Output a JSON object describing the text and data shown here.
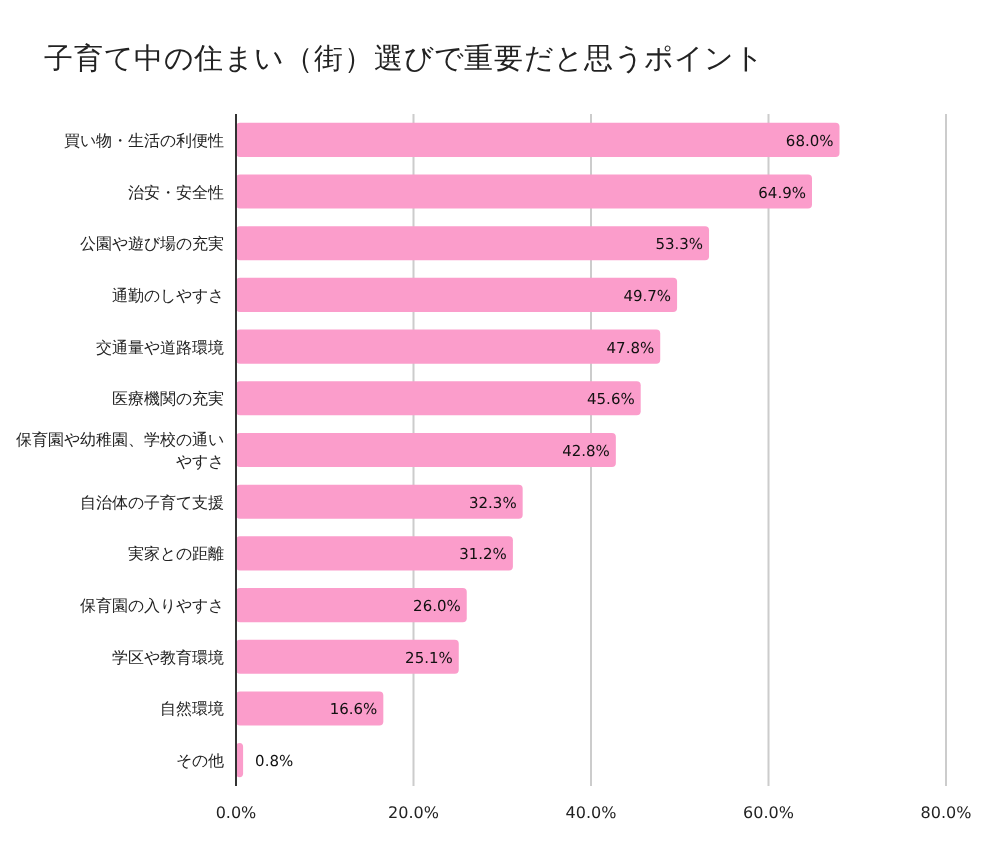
{
  "chart_data": {
    "type": "bar",
    "orientation": "horizontal",
    "title": "子育て中の住まい（街）選びで重要だと思うポイント",
    "categories": [
      "買い物・生活の利便性",
      "治安・安全性",
      "公園や遊び場の充実",
      "通勤のしやすさ",
      "交通量や道路環境",
      "医療機関の充実",
      "保育園や幼稚園、学校の通いやすさ",
      "自治体の子育て支援",
      "実家との距離",
      "保育園の入りやすさ",
      "学区や教育環境",
      "自然環境",
      "その他"
    ],
    "values": [
      68.0,
      64.9,
      53.3,
      49.7,
      47.8,
      45.6,
      42.8,
      32.3,
      31.2,
      26.0,
      25.1,
      16.6,
      0.8
    ],
    "value_labels": [
      "68.0%",
      "64.9%",
      "53.3%",
      "49.7%",
      "47.8%",
      "45.6%",
      "42.8%",
      "32.3%",
      "31.2%",
      "26.0%",
      "25.1%",
      "16.6%",
      "0.8%"
    ],
    "color": "#fb9dcb",
    "xlim": [
      0,
      80
    ],
    "xticks": [
      {
        "value": 0,
        "label": "0.0%"
      },
      {
        "value": 20,
        "label": "20.0%"
      },
      {
        "value": 40,
        "label": "40.0%"
      },
      {
        "value": 60,
        "label": "60.0%"
      },
      {
        "value": 80,
        "label": "80.0%"
      }
    ],
    "grid": "x"
  }
}
